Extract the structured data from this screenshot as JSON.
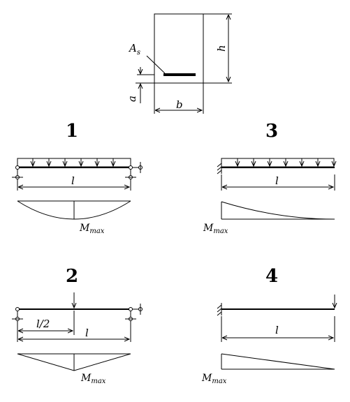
{
  "section": {
    "h": "h",
    "b": "b",
    "a": "a",
    "As_main": "A",
    "As_sub": "s"
  },
  "cases": [
    {
      "number": "1",
      "span": "l",
      "moment_main": "M",
      "moment_sub": "max"
    },
    {
      "number": "2",
      "span": "l",
      "half_span": "l/2",
      "moment_main": "M",
      "moment_sub": "max"
    },
    {
      "number": "3",
      "span": "l",
      "moment_main": "M",
      "moment_sub": "max"
    },
    {
      "number": "4",
      "span": "l",
      "moment_main": "M",
      "moment_sub": "max"
    }
  ]
}
